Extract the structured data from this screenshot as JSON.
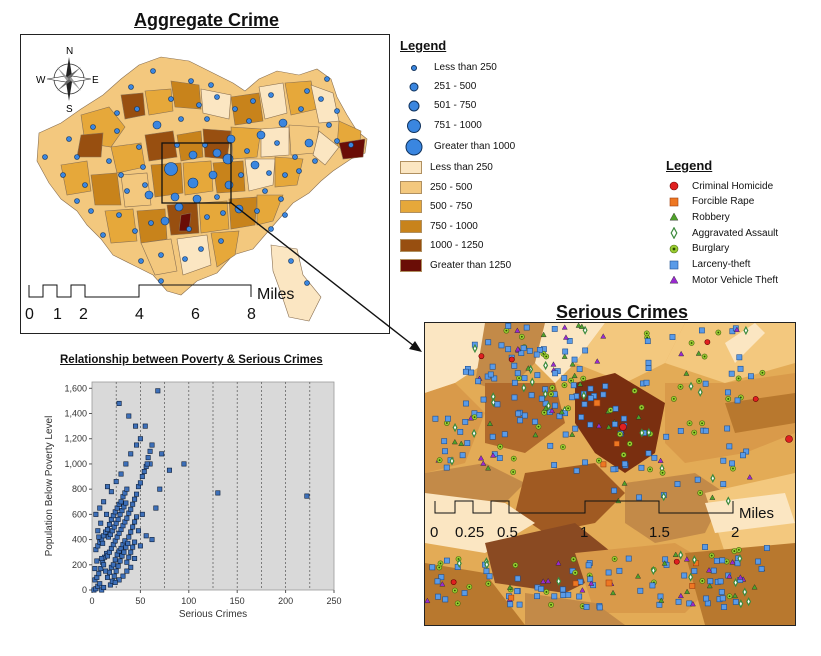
{
  "aggregate": {
    "title": "Aggregate Crime",
    "legend_title": "Legend",
    "compass": {
      "n": "N",
      "s": "S",
      "e": "E",
      "w": "W"
    },
    "scalebar": {
      "labels": [
        "0",
        "1",
        "2",
        "4",
        "6",
        "8"
      ],
      "unit": "Miles"
    },
    "dot_classes": [
      {
        "label": "Less than 250"
      },
      {
        "label": "251 - 500"
      },
      {
        "label": "501 - 750"
      },
      {
        "label": "751 - 1000"
      },
      {
        "label": "Greater than 1000"
      }
    ],
    "fill_classes": [
      {
        "label": "Less than 250",
        "color": "#fbe6c2"
      },
      {
        "label": "250 - 500",
        "color": "#f3c87e"
      },
      {
        "label": "500 - 750",
        "color": "#e6a83a"
      },
      {
        "label": "750 - 1000",
        "color": "#c8831b"
      },
      {
        "label": "1000 - 1250",
        "color": "#984f10"
      },
      {
        "label": "Greater than 1250",
        "color": "#6a0d06"
      }
    ]
  },
  "serious": {
    "title": "Serious Crimes",
    "legend_title": "Legend",
    "categories": [
      {
        "label": "Criminal Homicide",
        "symbol": "circle-red",
        "color": "#e02020"
      },
      {
        "label": "Forcible Rape",
        "symbol": "square-orange",
        "color": "#ee7722"
      },
      {
        "label": "Robbery",
        "symbol": "triangle-green",
        "color": "#4fa12a"
      },
      {
        "label": "Aggravated Assault",
        "symbol": "diamond-green",
        "color": "#3c8a3c"
      },
      {
        "label": "Burglary",
        "symbol": "target-yellow-green",
        "color": "#9acd32"
      },
      {
        "label": "Larceny-theft",
        "symbol": "square-blue",
        "color": "#5a9be8"
      },
      {
        "label": "Motor Vehicle Theft",
        "symbol": "triangle-purple",
        "color": "#9a2ad0"
      }
    ],
    "scalebar": {
      "labels": [
        "0",
        "0.25",
        "0.5",
        "1",
        "1.5",
        "2"
      ],
      "unit": "Miles"
    }
  },
  "chart_data": {
    "type": "scatter",
    "title": "Relationship between Poverty & Serious Crimes",
    "xlabel": "Serious Crimes",
    "ylabel": "Population Below Poverty Level",
    "xlim": [
      0,
      250
    ],
    "ylim": [
      0,
      1650
    ],
    "xticks": [
      0,
      50,
      100,
      150,
      200,
      250
    ],
    "yticks": [
      0,
      200,
      400,
      600,
      800,
      1000,
      1200,
      1400,
      1600
    ],
    "xtick_labels": [
      "0",
      "50",
      "100",
      "150",
      "200",
      "250"
    ],
    "ytick_labels": [
      "0",
      "200",
      "400",
      "600",
      "800",
      "1,000",
      "1,200",
      "1,400",
      "1,600"
    ],
    "grid": "vertical dotted",
    "points": [
      [
        2,
        0
      ],
      [
        4,
        10
      ],
      [
        6,
        30
      ],
      [
        8,
        50
      ],
      [
        10,
        0
      ],
      [
        12,
        20
      ],
      [
        3,
        80
      ],
      [
        5,
        100
      ],
      [
        7,
        130
      ],
      [
        9,
        170
      ],
      [
        11,
        220
      ],
      [
        13,
        260
      ],
      [
        15,
        290
      ],
      [
        4,
        320
      ],
      [
        6,
        350
      ],
      [
        8,
        380
      ],
      [
        10,
        400
      ],
      [
        12,
        430
      ],
      [
        14,
        460
      ],
      [
        16,
        480
      ],
      [
        18,
        520
      ],
      [
        20,
        560
      ],
      [
        22,
        590
      ],
      [
        24,
        620
      ],
      [
        26,
        650
      ],
      [
        28,
        680
      ],
      [
        30,
        700
      ],
      [
        32,
        740
      ],
      [
        34,
        770
      ],
      [
        36,
        800
      ],
      [
        16,
        100
      ],
      [
        18,
        140
      ],
      [
        20,
        180
      ],
      [
        22,
        200
      ],
      [
        24,
        240
      ],
      [
        26,
        280
      ],
      [
        28,
        310
      ],
      [
        30,
        330
      ],
      [
        32,
        360
      ],
      [
        34,
        390
      ],
      [
        19,
        40
      ],
      [
        21,
        70
      ],
      [
        23,
        110
      ],
      [
        25,
        150
      ],
      [
        27,
        190
      ],
      [
        29,
        230
      ],
      [
        31,
        270
      ],
      [
        33,
        300
      ],
      [
        35,
        340
      ],
      [
        37,
        370
      ],
      [
        17,
        420
      ],
      [
        19,
        440
      ],
      [
        21,
        470
      ],
      [
        23,
        500
      ],
      [
        25,
        530
      ],
      [
        27,
        560
      ],
      [
        29,
        600
      ],
      [
        31,
        630
      ],
      [
        33,
        660
      ],
      [
        35,
        690
      ],
      [
        38,
        420
      ],
      [
        40,
        460
      ],
      [
        42,
        500
      ],
      [
        44,
        540
      ],
      [
        46,
        580
      ],
      [
        36,
        220
      ],
      [
        38,
        260
      ],
      [
        40,
        300
      ],
      [
        42,
        340
      ],
      [
        44,
        380
      ],
      [
        14,
        150
      ],
      [
        12,
        200
      ],
      [
        10,
        250
      ],
      [
        16,
        270
      ],
      [
        18,
        300
      ],
      [
        20,
        330
      ],
      [
        22,
        360
      ],
      [
        24,
        390
      ],
      [
        26,
        420
      ],
      [
        28,
        450
      ],
      [
        30,
        480
      ],
      [
        32,
        510
      ],
      [
        34,
        540
      ],
      [
        36,
        570
      ],
      [
        38,
        610
      ],
      [
        40,
        640
      ],
      [
        42,
        680
      ],
      [
        44,
        720
      ],
      [
        46,
        760
      ],
      [
        48,
        820
      ],
      [
        50,
        850
      ],
      [
        52,
        900
      ],
      [
        54,
        940
      ],
      [
        56,
        980
      ],
      [
        58,
        1050
      ],
      [
        60,
        1100
      ],
      [
        62,
        1150
      ],
      [
        28,
        1480
      ],
      [
        38,
        1380
      ],
      [
        55,
        1300
      ],
      [
        45,
        1300
      ],
      [
        50,
        1200
      ],
      [
        60,
        1000
      ],
      [
        72,
        1080
      ],
      [
        68,
        1580
      ],
      [
        57,
        1000
      ],
      [
        80,
        950
      ],
      [
        70,
        800
      ],
      [
        66,
        650
      ],
      [
        52,
        600
      ],
      [
        48,
        470
      ],
      [
        56,
        430
      ],
      [
        62,
        400
      ],
      [
        50,
        350
      ],
      [
        44,
        250
      ],
      [
        40,
        180
      ],
      [
        36,
        150
      ],
      [
        32,
        110
      ],
      [
        28,
        80
      ],
      [
        24,
        60
      ],
      [
        4,
        600
      ],
      [
        8,
        650
      ],
      [
        12,
        700
      ],
      [
        6,
        470
      ],
      [
        9,
        530
      ],
      [
        15,
        600
      ],
      [
        5,
        230
      ],
      [
        3,
        170
      ],
      [
        7,
        420
      ],
      [
        11,
        370
      ],
      [
        95,
        1000
      ],
      [
        130,
        770
      ],
      [
        222,
        745
      ],
      [
        16,
        820
      ],
      [
        20,
        780
      ],
      [
        25,
        860
      ],
      [
        30,
        920
      ],
      [
        35,
        1000
      ],
      [
        40,
        1080
      ],
      [
        46,
        1150
      ]
    ]
  }
}
